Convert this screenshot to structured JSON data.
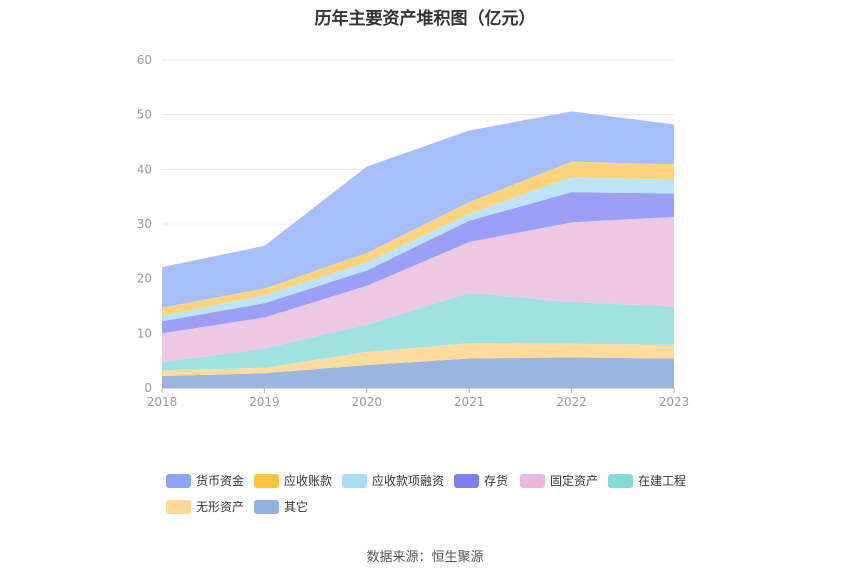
{
  "chart_data": {
    "type": "area",
    "title": "历年主要资产堆积图（亿元）",
    "stacked": true,
    "x": [
      "2018",
      "2019",
      "2020",
      "2021",
      "2022",
      "2023"
    ],
    "ylim": [
      0,
      60
    ],
    "yticks": [
      0,
      10,
      20,
      30,
      40,
      50,
      60
    ],
    "grid": true,
    "legend_position": "bottom",
    "series": [
      {
        "name": "其它",
        "color": "#9bb5e0",
        "values": [
          2.2,
          2.7,
          4.2,
          5.4,
          5.6,
          5.4
        ]
      },
      {
        "name": "无形资产",
        "color": "#fedca0",
        "values": [
          1.0,
          1.0,
          2.4,
          2.8,
          2.5,
          2.5
        ]
      },
      {
        "name": "在建工程",
        "color": "#9fe2e0",
        "values": [
          1.5,
          3.5,
          5.0,
          9.2,
          7.6,
          7.0
        ]
      },
      {
        "name": "固定资产",
        "color": "#ecc8e3",
        "values": [
          5.3,
          5.7,
          7.1,
          9.3,
          14.6,
          16.4
        ]
      },
      {
        "name": "存货",
        "color": "#9b9ff6",
        "values": [
          2.2,
          2.6,
          2.8,
          3.9,
          5.5,
          4.3
        ]
      },
      {
        "name": "应收款项融资",
        "color": "#bde4f8",
        "values": [
          1.0,
          1.5,
          1.5,
          1.3,
          2.8,
          2.5
        ]
      },
      {
        "name": "应收账款",
        "color": "#fdd47d",
        "values": [
          1.5,
          1.2,
          1.7,
          2.1,
          2.8,
          2.8
        ]
      },
      {
        "name": "货币资金",
        "color": "#a7bdfa",
        "values": [
          7.4,
          7.8,
          15.8,
          13.1,
          9.2,
          7.3
        ]
      }
    ]
  },
  "legend": [
    {
      "label": "货币资金",
      "color": "#8aa5f6"
    },
    {
      "label": "应收账款",
      "color": "#fdc23e"
    },
    {
      "label": "应收款项融资",
      "color": "#a9ddf7"
    },
    {
      "label": "存货",
      "color": "#7b7ff2"
    },
    {
      "label": "固定资产",
      "color": "#eab8dc"
    },
    {
      "label": "在建工程",
      "color": "#84d8d6"
    },
    {
      "label": "无形资产",
      "color": "#fed89a"
    },
    {
      "label": "其它",
      "color": "#94b0de"
    }
  ],
  "source": "数据来源：恒生聚源"
}
